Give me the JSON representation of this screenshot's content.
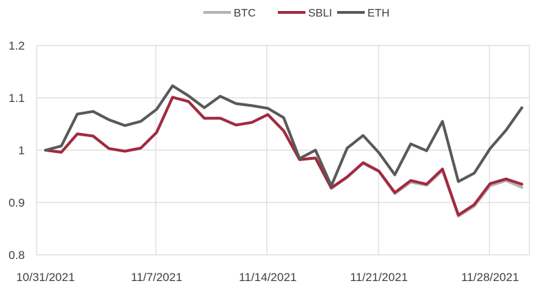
{
  "chart_data": {
    "type": "line",
    "title": "",
    "xlabel": "",
    "ylabel": "",
    "ylim": [
      0.8,
      1.2
    ],
    "yticks": [
      "0.8",
      "0.9",
      "1",
      "1.1",
      "1.2"
    ],
    "xtick_labels": [
      "10/31/2021",
      "11/7/2021",
      "11/14/2021",
      "11/21/2021",
      "11/28/2021"
    ],
    "grid": "vertical and horizontal",
    "legend_position": "top-center",
    "x": [
      "10/31/2021",
      "11/1/2021",
      "11/2/2021",
      "11/3/2021",
      "11/4/2021",
      "11/5/2021",
      "11/6/2021",
      "11/7/2021",
      "11/8/2021",
      "11/9/2021",
      "11/10/2021",
      "11/11/2021",
      "11/12/2021",
      "11/13/2021",
      "11/14/2021",
      "11/15/2021",
      "11/16/2021",
      "11/17/2021",
      "11/18/2021",
      "11/19/2021",
      "11/20/2021",
      "11/21/2021",
      "11/22/2021",
      "11/23/2021",
      "11/24/2021",
      "11/25/2021",
      "11/26/2021",
      "11/27/2021",
      "11/28/2021",
      "11/29/2021",
      "11/30/2021"
    ],
    "series": [
      {
        "name": "BTC",
        "color": "#b3b3b3",
        "values": [
          1.0,
          0.996,
          1.031,
          1.027,
          1.003,
          0.998,
          1.004,
          1.034,
          1.101,
          1.093,
          1.061,
          1.061,
          1.048,
          1.053,
          1.068,
          1.037,
          0.982,
          0.985,
          0.927,
          0.948,
          0.975,
          0.959,
          0.917,
          0.939,
          0.933,
          0.961,
          0.874,
          0.893,
          0.932,
          0.942,
          0.929
        ]
      },
      {
        "name": "SBLI",
        "color": "#a3293f",
        "values": [
          1.0,
          0.996,
          1.031,
          1.027,
          1.003,
          0.998,
          1.004,
          1.034,
          1.101,
          1.093,
          1.061,
          1.061,
          1.048,
          1.053,
          1.068,
          1.037,
          0.982,
          0.985,
          0.928,
          0.949,
          0.976,
          0.96,
          0.919,
          0.942,
          0.935,
          0.964,
          0.876,
          0.896,
          0.936,
          0.945,
          0.935
        ]
      },
      {
        "name": "ETH",
        "color": "#595959",
        "values": [
          1.0,
          1.008,
          1.069,
          1.074,
          1.058,
          1.047,
          1.055,
          1.078,
          1.123,
          1.104,
          1.081,
          1.103,
          1.089,
          1.085,
          1.08,
          1.062,
          0.984,
          1.0,
          0.932,
          1.004,
          1.028,
          0.995,
          0.953,
          1.012,
          0.999,
          1.055,
          0.94,
          0.956,
          1.003,
          1.038,
          1.081
        ]
      }
    ]
  }
}
